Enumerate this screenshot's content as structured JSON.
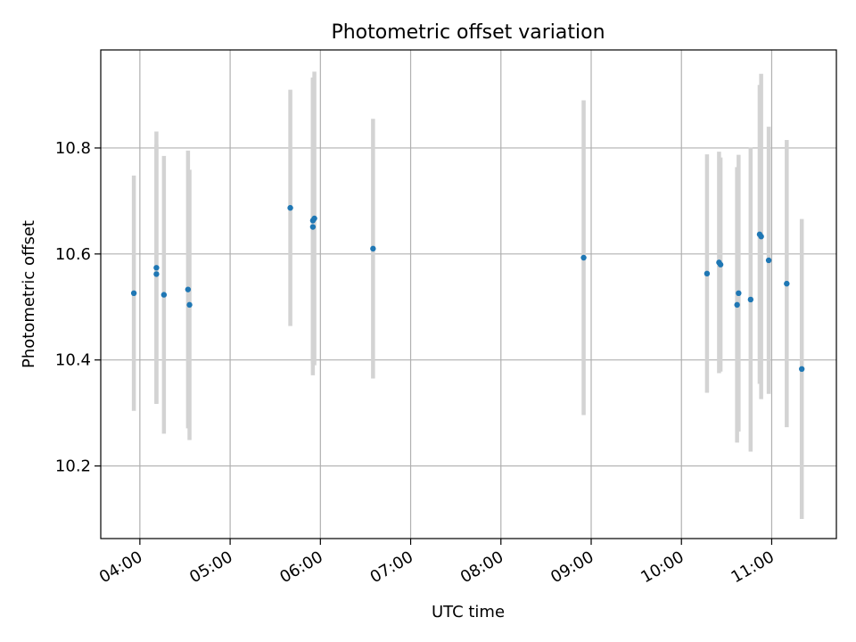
{
  "chart_data": {
    "type": "scatter",
    "title": "Photometric offset variation",
    "xlabel": "UTC time",
    "ylabel": "Photometric offset",
    "x_tick_labels": [
      "04:00",
      "05:00",
      "06:00",
      "07:00",
      "08:00",
      "09:00",
      "10:00",
      "11:00"
    ],
    "y_tick_labels": [
      "10.2",
      "10.4",
      "10.6",
      "10.8"
    ],
    "y_ticks": [
      10.2,
      10.4,
      10.6,
      10.8
    ],
    "xlim": [
      "03:34",
      "11:43"
    ],
    "ylim": [
      10.063,
      10.985
    ],
    "grid": true,
    "marker_color": "#1f77b4",
    "errorbar_color": "#d3d3d3",
    "series": [
      {
        "points": [
          {
            "x": "03:56",
            "y": 10.526,
            "err": 0.222
          },
          {
            "x": "04:11",
            "y": 10.574,
            "err": 0.257
          },
          {
            "x": "04:11",
            "y": 10.562,
            "err": 0.244
          },
          {
            "x": "04:16",
            "y": 10.523,
            "err": 0.262
          },
          {
            "x": "04:32",
            "y": 10.533,
            "err": 0.262
          },
          {
            "x": "04:33",
            "y": 10.504,
            "err": 0.255
          },
          {
            "x": "05:40",
            "y": 10.687,
            "err": 0.223
          },
          {
            "x": "05:55",
            "y": 10.651,
            "err": 0.28
          },
          {
            "x": "05:55",
            "y": 10.663,
            "err": 0.27
          },
          {
            "x": "05:56",
            "y": 10.667,
            "err": 0.277
          },
          {
            "x": "06:35",
            "y": 10.61,
            "err": 0.245
          },
          {
            "x": "08:55",
            "y": 10.593,
            "err": 0.297
          },
          {
            "x": "10:17",
            "y": 10.563,
            "err": 0.225
          },
          {
            "x": "10:25",
            "y": 10.584,
            "err": 0.209
          },
          {
            "x": "10:26",
            "y": 10.58,
            "err": 0.202
          },
          {
            "x": "10:37",
            "y": 10.504,
            "err": 0.26
          },
          {
            "x": "10:38",
            "y": 10.526,
            "err": 0.261
          },
          {
            "x": "10:46",
            "y": 10.514,
            "err": 0.287
          },
          {
            "x": "10:52",
            "y": 10.637,
            "err": 0.282
          },
          {
            "x": "10:53",
            "y": 10.633,
            "err": 0.307
          },
          {
            "x": "10:58",
            "y": 10.588,
            "err": 0.252
          },
          {
            "x": "11:10",
            "y": 10.544,
            "err": 0.271
          },
          {
            "x": "11:20",
            "y": 10.383,
            "err": 0.283
          }
        ]
      }
    ]
  }
}
